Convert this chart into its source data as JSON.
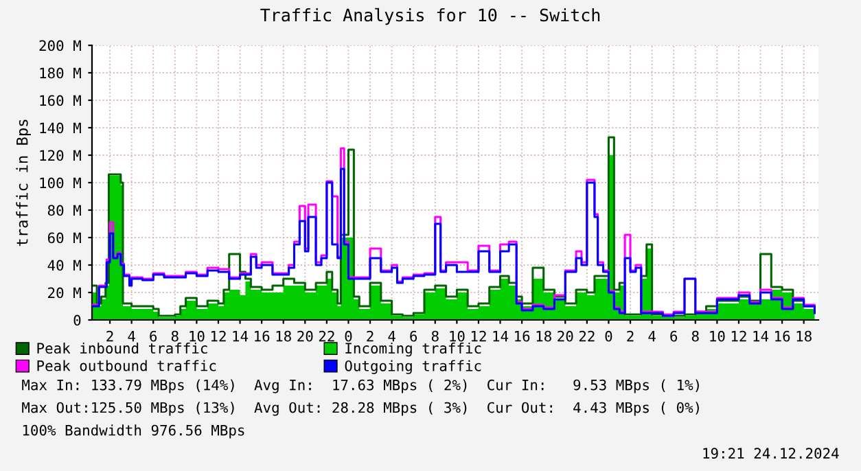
{
  "chart_data": {
    "type": "step",
    "title": "Traffic Analysis for 10 -- Switch",
    "ylabel": "traffic in Bps",
    "xlim": [
      "2024-12-22T00:21",
      "2024-12-24T19:21"
    ],
    "xticks": [
      {
        "value": "2024-12-22T02:00",
        "label": "2"
      },
      {
        "value": "2024-12-22T04:00",
        "label": "4"
      },
      {
        "value": "2024-12-22T06:00",
        "label": "6"
      },
      {
        "value": "2024-12-22T08:00",
        "label": "8"
      },
      {
        "value": "2024-12-22T10:00",
        "label": "10"
      },
      {
        "value": "2024-12-22T12:00",
        "label": "12"
      },
      {
        "value": "2024-12-22T14:00",
        "label": "14"
      },
      {
        "value": "2024-12-22T16:00",
        "label": "16"
      },
      {
        "value": "2024-12-22T18:00",
        "label": "18"
      },
      {
        "value": "2024-12-22T20:00",
        "label": "20"
      },
      {
        "value": "2024-12-22T22:00",
        "label": "22"
      },
      {
        "value": "2024-12-23T00:00",
        "label": "0"
      },
      {
        "value": "2024-12-23T02:00",
        "label": "2"
      },
      {
        "value": "2024-12-23T04:00",
        "label": "4"
      },
      {
        "value": "2024-12-23T06:00",
        "label": "6"
      },
      {
        "value": "2024-12-23T08:00",
        "label": "8"
      },
      {
        "value": "2024-12-23T10:00",
        "label": "10"
      },
      {
        "value": "2024-12-23T12:00",
        "label": "12"
      },
      {
        "value": "2024-12-23T14:00",
        "label": "14"
      },
      {
        "value": "2024-12-23T16:00",
        "label": "16"
      },
      {
        "value": "2024-12-23T18:00",
        "label": "18"
      },
      {
        "value": "2024-12-23T20:00",
        "label": "20"
      },
      {
        "value": "2024-12-23T22:00",
        "label": "22"
      },
      {
        "value": "2024-12-24T00:00",
        "label": "0"
      },
      {
        "value": "2024-12-24T02:00",
        "label": "2"
      },
      {
        "value": "2024-12-24T04:00",
        "label": "4"
      },
      {
        "value": "2024-12-24T06:00",
        "label": "6"
      },
      {
        "value": "2024-12-24T08:00",
        "label": "8"
      },
      {
        "value": "2024-12-24T10:00",
        "label": "10"
      },
      {
        "value": "2024-12-24T12:00",
        "label": "12"
      },
      {
        "value": "2024-12-24T14:00",
        "label": "14"
      },
      {
        "value": "2024-12-24T16:00",
        "label": "16"
      },
      {
        "value": "2024-12-24T18:00",
        "label": "18"
      }
    ],
    "ylim": [
      0,
      200
    ],
    "yticks": [
      {
        "value": 0,
        "label": "0"
      },
      {
        "value": 20,
        "label": "20 M"
      },
      {
        "value": 40,
        "label": "40 M"
      },
      {
        "value": 60,
        "label": "60 M"
      },
      {
        "value": 80,
        "label": "80 M"
      },
      {
        "value": 100,
        "label": "100 M"
      },
      {
        "value": 120,
        "label": "120 M"
      },
      {
        "value": 140,
        "label": "140 M"
      },
      {
        "value": 160,
        "label": "160 M"
      },
      {
        "value": 180,
        "label": "180 M"
      },
      {
        "value": 200,
        "label": "200 M"
      }
    ],
    "grid": true,
    "legend": "bottom",
    "series": [
      {
        "name": "Peak inbound traffic",
        "color": "#006400",
        "x": [
          "2024-12-22T00:24",
          "2024-12-22T00:48",
          "2024-12-22T01:12",
          "2024-12-22T01:36",
          "2024-12-22T01:54",
          "2024-12-22T03:00",
          "2024-12-22T03:12",
          "2024-12-22T04:00",
          "2024-12-22T05:00",
          "2024-12-22T06:00",
          "2024-12-22T06:30",
          "2024-12-22T07:00",
          "2024-12-22T08:00",
          "2024-12-22T08:30",
          "2024-12-22T09:00",
          "2024-12-22T10:00",
          "2024-12-22T11:00",
          "2024-12-22T12:00",
          "2024-12-22T12:30",
          "2024-12-22T13:00",
          "2024-12-22T14:00",
          "2024-12-22T14:30",
          "2024-12-22T15:00",
          "2024-12-22T16:00",
          "2024-12-22T17:00",
          "2024-12-22T18:00",
          "2024-12-22T19:00",
          "2024-12-22T20:00",
          "2024-12-22T21:00",
          "2024-12-22T22:00",
          "2024-12-22T22:30",
          "2024-12-22T23:00",
          "2024-12-22T23:18",
          "2024-12-23T00:00",
          "2024-12-23T00:30",
          "2024-12-23T01:00",
          "2024-12-23T02:00",
          "2024-12-23T03:00",
          "2024-12-23T04:00",
          "2024-12-23T05:00",
          "2024-12-23T06:00",
          "2024-12-23T07:00",
          "2024-12-23T08:00",
          "2024-12-23T09:00",
          "2024-12-23T10:00",
          "2024-12-23T11:00",
          "2024-12-23T12:00",
          "2024-12-23T13:00",
          "2024-12-23T14:00",
          "2024-12-23T14:48",
          "2024-12-23T15:30",
          "2024-12-23T16:00",
          "2024-12-23T17:00",
          "2024-12-23T18:00",
          "2024-12-23T19:00",
          "2024-12-23T20:00",
          "2024-12-23T21:00",
          "2024-12-23T22:00",
          "2024-12-23T22:42",
          "2024-12-23T23:00",
          "2024-12-23T23:30",
          "2024-12-24T00:00",
          "2024-12-24T00:30",
          "2024-12-24T01:00",
          "2024-12-24T01:30",
          "2024-12-24T02:00",
          "2024-12-24T03:00",
          "2024-12-24T03:30",
          "2024-12-24T04:00",
          "2024-12-24T05:00",
          "2024-12-24T06:00",
          "2024-12-24T07:00",
          "2024-12-24T08:00",
          "2024-12-24T09:00",
          "2024-12-24T10:00",
          "2024-12-24T11:00",
          "2024-12-24T12:00",
          "2024-12-24T13:00",
          "2024-12-24T14:00",
          "2024-12-24T15:00",
          "2024-12-24T16:00",
          "2024-12-24T17:00",
          "2024-12-24T18:00",
          "2024-12-24T19:00"
        ],
        "values": [
          25,
          12,
          17,
          27,
          106,
          100,
          12,
          10,
          10,
          8,
          3,
          3,
          4,
          10,
          16,
          10,
          14,
          12,
          22,
          48,
          35,
          30,
          24,
          22,
          25,
          30,
          27,
          22,
          27,
          35,
          22,
          12,
          62,
          124,
          17,
          10,
          27,
          14,
          4,
          3,
          5,
          22,
          25,
          17,
          22,
          10,
          12,
          24,
          32,
          27,
          17,
          12,
          38,
          22,
          17,
          12,
          22,
          20,
          32,
          32,
          32,
          133,
          22,
          27,
          4,
          4,
          32,
          55,
          4,
          3,
          3,
          4,
          6,
          10,
          14,
          14,
          17,
          14,
          48,
          24,
          22,
          14,
          10,
          6
        ]
      },
      {
        "name": "Peak outbound traffic",
        "color": "#ff00ff",
        "x": [
          "2024-12-22T00:24",
          "2024-12-22T01:00",
          "2024-12-22T01:30",
          "2024-12-22T01:42",
          "2024-12-22T02:00",
          "2024-12-22T02:18",
          "2024-12-22T02:42",
          "2024-12-22T03:00",
          "2024-12-22T03:18",
          "2024-12-22T03:48",
          "2024-12-22T04:00",
          "2024-12-22T05:00",
          "2024-12-22T06:00",
          "2024-12-22T07:00",
          "2024-12-22T08:00",
          "2024-12-22T09:00",
          "2024-12-22T10:00",
          "2024-12-22T11:00",
          "2024-12-22T12:00",
          "2024-12-22T13:00",
          "2024-12-22T14:00",
          "2024-12-22T15:00",
          "2024-12-22T15:30",
          "2024-12-22T16:00",
          "2024-12-22T17:00",
          "2024-12-22T18:00",
          "2024-12-22T18:30",
          "2024-12-22T19:00",
          "2024-12-22T19:30",
          "2024-12-22T20:00",
          "2024-12-22T20:18",
          "2024-12-22T21:00",
          "2024-12-22T21:30",
          "2024-12-22T22:00",
          "2024-12-22T22:30",
          "2024-12-22T23:00",
          "2024-12-22T23:18",
          "2024-12-22T23:36",
          "2024-12-23T00:00",
          "2024-12-23T00:30",
          "2024-12-23T01:00",
          "2024-12-23T02:00",
          "2024-12-23T03:00",
          "2024-12-23T04:00",
          "2024-12-23T04:30",
          "2024-12-23T05:00",
          "2024-12-23T06:00",
          "2024-12-23T07:00",
          "2024-12-23T08:00",
          "2024-12-23T08:30",
          "2024-12-23T09:00",
          "2024-12-23T10:00",
          "2024-12-23T11:00",
          "2024-12-23T12:00",
          "2024-12-23T13:00",
          "2024-12-23T14:00",
          "2024-12-23T14:48",
          "2024-12-23T15:30",
          "2024-12-23T16:00",
          "2024-12-23T17:00",
          "2024-12-23T18:00",
          "2024-12-23T19:00",
          "2024-12-23T20:00",
          "2024-12-23T21:00",
          "2024-12-23T21:30",
          "2024-12-23T22:00",
          "2024-12-23T22:42",
          "2024-12-23T23:00",
          "2024-12-23T23:30",
          "2024-12-24T00:00",
          "2024-12-24T00:30",
          "2024-12-24T01:00",
          "2024-12-24T01:30",
          "2024-12-24T02:00",
          "2024-12-24T02:30",
          "2024-12-24T03:00",
          "2024-12-24T04:00",
          "2024-12-24T05:00",
          "2024-12-24T06:00",
          "2024-12-24T07:00",
          "2024-12-24T08:00",
          "2024-12-24T09:00",
          "2024-12-24T10:00",
          "2024-12-24T11:00",
          "2024-12-24T12:00",
          "2024-12-24T13:00",
          "2024-12-24T14:00",
          "2024-12-24T15:00",
          "2024-12-24T16:00",
          "2024-12-24T17:00",
          "2024-12-24T18:00",
          "2024-12-24T19:00"
        ],
        "values": [
          11,
          25,
          25,
          44,
          71,
          46,
          49,
          41,
          33,
          26,
          31,
          30,
          34,
          32,
          32,
          35,
          33,
          38,
          37,
          31,
          34,
          48,
          40,
          42,
          34,
          34,
          40,
          57,
          83,
          52,
          84,
          42,
          47,
          101,
          90,
          46,
          125,
          57,
          31,
          31,
          31,
          52,
          36,
          40,
          28,
          31,
          33,
          34,
          75,
          36,
          42,
          42,
          36,
          54,
          36,
          55,
          57,
          13,
          8,
          11,
          9,
          18,
          36,
          50,
          42,
          102,
          77,
          42,
          36,
          21,
          9,
          6,
          62,
          36,
          40,
          6,
          6,
          4,
          6,
          30,
          6,
          6,
          16,
          16,
          20,
          13,
          22,
          16,
          9,
          16,
          11,
          6
        ]
      },
      {
        "name": "Incoming traffic",
        "color": "#00cc00",
        "type": "area",
        "x": [
          "2024-12-22T00:24",
          "2024-12-22T00:48",
          "2024-12-22T01:12",
          "2024-12-22T01:36",
          "2024-12-22T01:54",
          "2024-12-22T03:00",
          "2024-12-22T03:12",
          "2024-12-22T04:00",
          "2024-12-22T05:00",
          "2024-12-22T06:00",
          "2024-12-22T06:30",
          "2024-12-22T07:00",
          "2024-12-22T08:00",
          "2024-12-22T08:30",
          "2024-12-22T09:00",
          "2024-12-22T10:00",
          "2024-12-22T11:00",
          "2024-12-22T12:00",
          "2024-12-22T12:30",
          "2024-12-22T13:00",
          "2024-12-22T14:00",
          "2024-12-22T14:30",
          "2024-12-22T15:00",
          "2024-12-22T16:00",
          "2024-12-22T17:00",
          "2024-12-22T18:00",
          "2024-12-22T19:00",
          "2024-12-22T20:00",
          "2024-12-22T21:00",
          "2024-12-22T22:00",
          "2024-12-22T22:30",
          "2024-12-22T23:00",
          "2024-12-22T23:18",
          "2024-12-23T00:00",
          "2024-12-23T00:30",
          "2024-12-23T01:00",
          "2024-12-23T02:00",
          "2024-12-23T03:00",
          "2024-12-23T04:00",
          "2024-12-23T05:00",
          "2024-12-23T06:00",
          "2024-12-23T07:00",
          "2024-12-23T08:00",
          "2024-12-23T09:00",
          "2024-12-23T10:00",
          "2024-12-23T11:00",
          "2024-12-23T12:00",
          "2024-12-23T13:00",
          "2024-12-23T14:00",
          "2024-12-23T14:48",
          "2024-12-23T15:30",
          "2024-12-23T16:00",
          "2024-12-23T17:00",
          "2024-12-23T18:00",
          "2024-12-23T19:00",
          "2024-12-23T20:00",
          "2024-12-23T21:00",
          "2024-12-23T22:00",
          "2024-12-23T22:42",
          "2024-12-23T23:00",
          "2024-12-23T23:30",
          "2024-12-24T00:00",
          "2024-12-24T00:30",
          "2024-12-24T01:00",
          "2024-12-24T01:30",
          "2024-12-24T02:00",
          "2024-12-24T03:00",
          "2024-12-24T03:30",
          "2024-12-24T04:00",
          "2024-12-24T05:00",
          "2024-12-24T06:00",
          "2024-12-24T07:00",
          "2024-12-24T08:00",
          "2024-12-24T09:00",
          "2024-12-24T10:00",
          "2024-12-24T11:00",
          "2024-12-24T12:00",
          "2024-12-24T13:00",
          "2024-12-24T14:00",
          "2024-12-24T15:00",
          "2024-12-24T16:00",
          "2024-12-24T17:00",
          "2024-12-24T18:00",
          "2024-12-24T19:00"
        ],
        "values": [
          20,
          10,
          15,
          25,
          105,
          98,
          10,
          8,
          8,
          6,
          2,
          2,
          3,
          8,
          14,
          8,
          12,
          10,
          20,
          22,
          18,
          28,
          22,
          20,
          20,
          25,
          25,
          20,
          25,
          30,
          20,
          10,
          60,
          60,
          15,
          8,
          25,
          12,
          3,
          2,
          4,
          20,
          23,
          15,
          20,
          8,
          10,
          22,
          30,
          25,
          15,
          10,
          30,
          20,
          15,
          10,
          20,
          18,
          30,
          30,
          30,
          120,
          20,
          25,
          3,
          3,
          30,
          52,
          3,
          2,
          2,
          3,
          5,
          8,
          12,
          12,
          15,
          12,
          15,
          22,
          20,
          12,
          8,
          5
        ]
      },
      {
        "name": "Outgoing traffic",
        "color": "#0000ff",
        "x": [
          "2024-12-22T00:24",
          "2024-12-22T01:00",
          "2024-12-22T01:30",
          "2024-12-22T01:42",
          "2024-12-22T02:00",
          "2024-12-22T02:18",
          "2024-12-22T02:42",
          "2024-12-22T03:00",
          "2024-12-22T03:18",
          "2024-12-22T03:48",
          "2024-12-22T04:00",
          "2024-12-22T05:00",
          "2024-12-22T06:00",
          "2024-12-22T07:00",
          "2024-12-22T08:00",
          "2024-12-22T09:00",
          "2024-12-22T10:00",
          "2024-12-22T11:00",
          "2024-12-22T12:00",
          "2024-12-22T13:00",
          "2024-12-22T14:00",
          "2024-12-22T15:00",
          "2024-12-22T15:30",
          "2024-12-22T16:00",
          "2024-12-22T17:00",
          "2024-12-22T18:00",
          "2024-12-22T18:30",
          "2024-12-22T19:00",
          "2024-12-22T19:30",
          "2024-12-22T20:00",
          "2024-12-22T20:18",
          "2024-12-22T21:00",
          "2024-12-22T21:30",
          "2024-12-22T22:00",
          "2024-12-22T22:30",
          "2024-12-22T23:00",
          "2024-12-22T23:18",
          "2024-12-22T23:36",
          "2024-12-23T00:00",
          "2024-12-23T00:30",
          "2024-12-23T01:00",
          "2024-12-23T02:00",
          "2024-12-23T03:00",
          "2024-12-23T04:00",
          "2024-12-23T04:30",
          "2024-12-23T05:00",
          "2024-12-23T06:00",
          "2024-12-23T07:00",
          "2024-12-23T08:00",
          "2024-12-23T08:30",
          "2024-12-23T09:00",
          "2024-12-23T10:00",
          "2024-12-23T11:00",
          "2024-12-23T12:00",
          "2024-12-23T13:00",
          "2024-12-23T14:00",
          "2024-12-23T14:48",
          "2024-12-23T15:30",
          "2024-12-23T16:00",
          "2024-12-23T17:00",
          "2024-12-23T18:00",
          "2024-12-23T19:00",
          "2024-12-23T20:00",
          "2024-12-23T21:00",
          "2024-12-23T21:30",
          "2024-12-23T22:00",
          "2024-12-23T22:42",
          "2024-12-23T23:00",
          "2024-12-23T23:30",
          "2024-12-24T00:00",
          "2024-12-24T00:30",
          "2024-12-24T01:00",
          "2024-12-24T01:30",
          "2024-12-24T02:00",
          "2024-12-24T02:30",
          "2024-12-24T03:00",
          "2024-12-24T04:00",
          "2024-12-24T05:00",
          "2024-12-24T06:00",
          "2024-12-24T07:00",
          "2024-12-24T08:00",
          "2024-12-24T09:00",
          "2024-12-24T10:00",
          "2024-12-24T11:00",
          "2024-12-24T12:00",
          "2024-12-24T13:00",
          "2024-12-24T14:00",
          "2024-12-24T15:00",
          "2024-12-24T16:00",
          "2024-12-24T17:00",
          "2024-12-24T18:00",
          "2024-12-24T19:00"
        ],
        "values": [
          10,
          24,
          24,
          42,
          63,
          45,
          48,
          40,
          32,
          25,
          30,
          29,
          33,
          31,
          31,
          34,
          32,
          36,
          35,
          30,
          33,
          46,
          38,
          40,
          33,
          33,
          38,
          55,
          72,
          50,
          75,
          40,
          45,
          100,
          55,
          45,
          110,
          55,
          30,
          30,
          30,
          45,
          35,
          38,
          27,
          30,
          32,
          33,
          70,
          35,
          40,
          35,
          35,
          50,
          35,
          50,
          55,
          12,
          7,
          10,
          8,
          15,
          35,
          45,
          40,
          100,
          75,
          40,
          35,
          20,
          8,
          5,
          45,
          35,
          38,
          5,
          5,
          3,
          5,
          30,
          5,
          5,
          15,
          15,
          18,
          12,
          20,
          15,
          8,
          15,
          10,
          5
        ]
      }
    ],
    "annotations": [
      "Max In: 133.79 MBps (14%)  Avg In:  17.63 MBps ( 2%)  Cur In:   9.53 MBps ( 1%)",
      "Max Out:125.50 MBps (13%)  Avg Out: 28.28 MBps ( 3%)  Cur Out:  4.43 MBps ( 0%)",
      "100% Bandwidth 976.56 MBps",
      "19:21 24.12.2024"
    ]
  }
}
